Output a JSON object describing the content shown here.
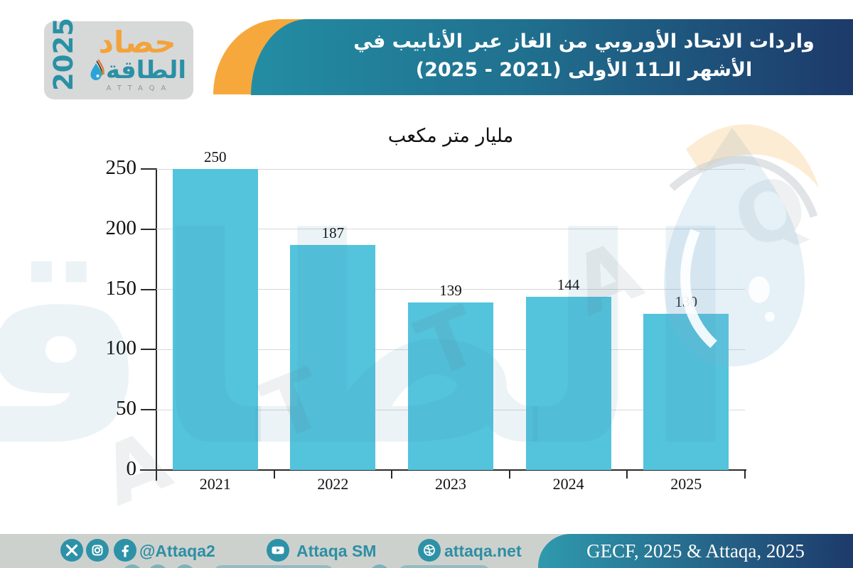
{
  "logo": {
    "year": "2025",
    "title_top": "حصاد",
    "title_bottom": "الطاقة",
    "subtitle": "ATTAQA"
  },
  "header": {
    "title_line1": "واردات الاتحاد الأوروبي من الغاز عبر الأنابيب في",
    "title_line2": "الأشهر الـ11 الأولى (2021 - 2025)"
  },
  "chart_data": {
    "type": "bar",
    "title": "مليار متر مكعب",
    "categories": [
      "2021",
      "2022",
      "2023",
      "2024",
      "2025"
    ],
    "values": [
      250,
      187,
      139,
      144,
      130
    ],
    "value_labels": [
      "250",
      "187",
      "139",
      "144",
      "130"
    ],
    "yticks": [
      0,
      50,
      100,
      150,
      200,
      250
    ],
    "ylim": [
      0,
      250
    ],
    "xlabel": "",
    "ylabel": "",
    "grid": true,
    "legend": "none",
    "bar_color": "#54c3dc"
  },
  "footer": {
    "social_handle": "@Attaqa2",
    "youtube_label": "Attaqa SM",
    "website": "attaqa.net",
    "source": "GECF, 2025 & Attaqa, 2025",
    "icons": [
      "x-icon",
      "instagram-icon",
      "facebook-icon",
      "youtube-icon",
      "globe-icon"
    ]
  },
  "watermark": {
    "word": "الطاقة",
    "diagonal": "A T T A Q A"
  },
  "colors": {
    "bar": "#54c3dc",
    "teal": "#2d92a7",
    "navy": "#1d3a6a",
    "orange": "#f6a83c",
    "footer_bg": "#cdd1ce",
    "logo_bg": "#d7d8d8",
    "grid": "#d9d9d9"
  }
}
